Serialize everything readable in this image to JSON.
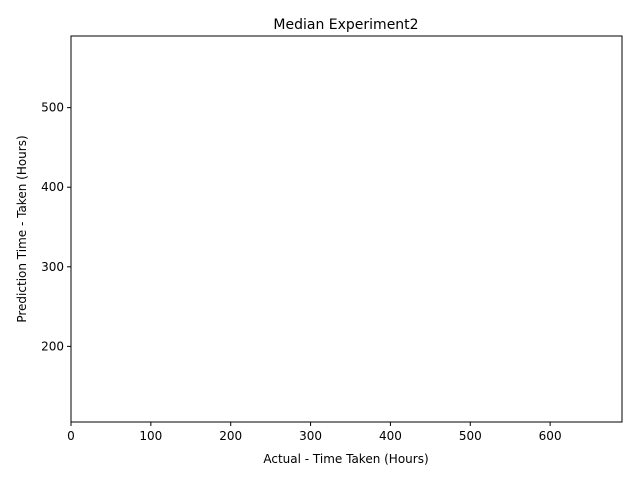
{
  "chart_data": {
    "type": "scatter",
    "title": "Median Experiment2",
    "xlabel": "Actual - Time Taken (Hours)",
    "ylabel": "Prediction Time - Taken (Hours)",
    "xlim": [
      0,
      690
    ],
    "ylim": [
      105,
      590
    ],
    "xticks": [
      0,
      100,
      200,
      300,
      400,
      500,
      600
    ],
    "yticks": [
      200,
      300,
      400,
      500
    ],
    "x": [],
    "y": [],
    "grid": false,
    "legend": "none"
  }
}
